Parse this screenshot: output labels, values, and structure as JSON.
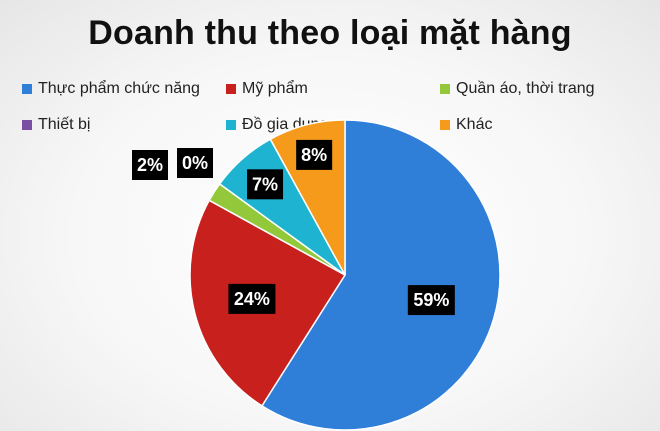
{
  "chart_data": {
    "type": "pie",
    "title": "Doanh thu theo loại mặt hàng",
    "categories": [
      "Thực phẩm chức năng",
      "Mỹ phẩm",
      "Quần áo, thời trang",
      "Thiết bị",
      "Đồ gia dụng",
      "Khác"
    ],
    "values": [
      59,
      24,
      2,
      0,
      7,
      8
    ],
    "labels": [
      "59%",
      "24%",
      "2%",
      "0%",
      "7%",
      "8%"
    ],
    "colors": [
      "#2f7ed8",
      "#c8201d",
      "#92c83a",
      "#7a4fa3",
      "#1fb3d2",
      "#f59a1b"
    ],
    "legend_position": "top",
    "start_angle_deg": 0,
    "direction": "clockwise"
  }
}
